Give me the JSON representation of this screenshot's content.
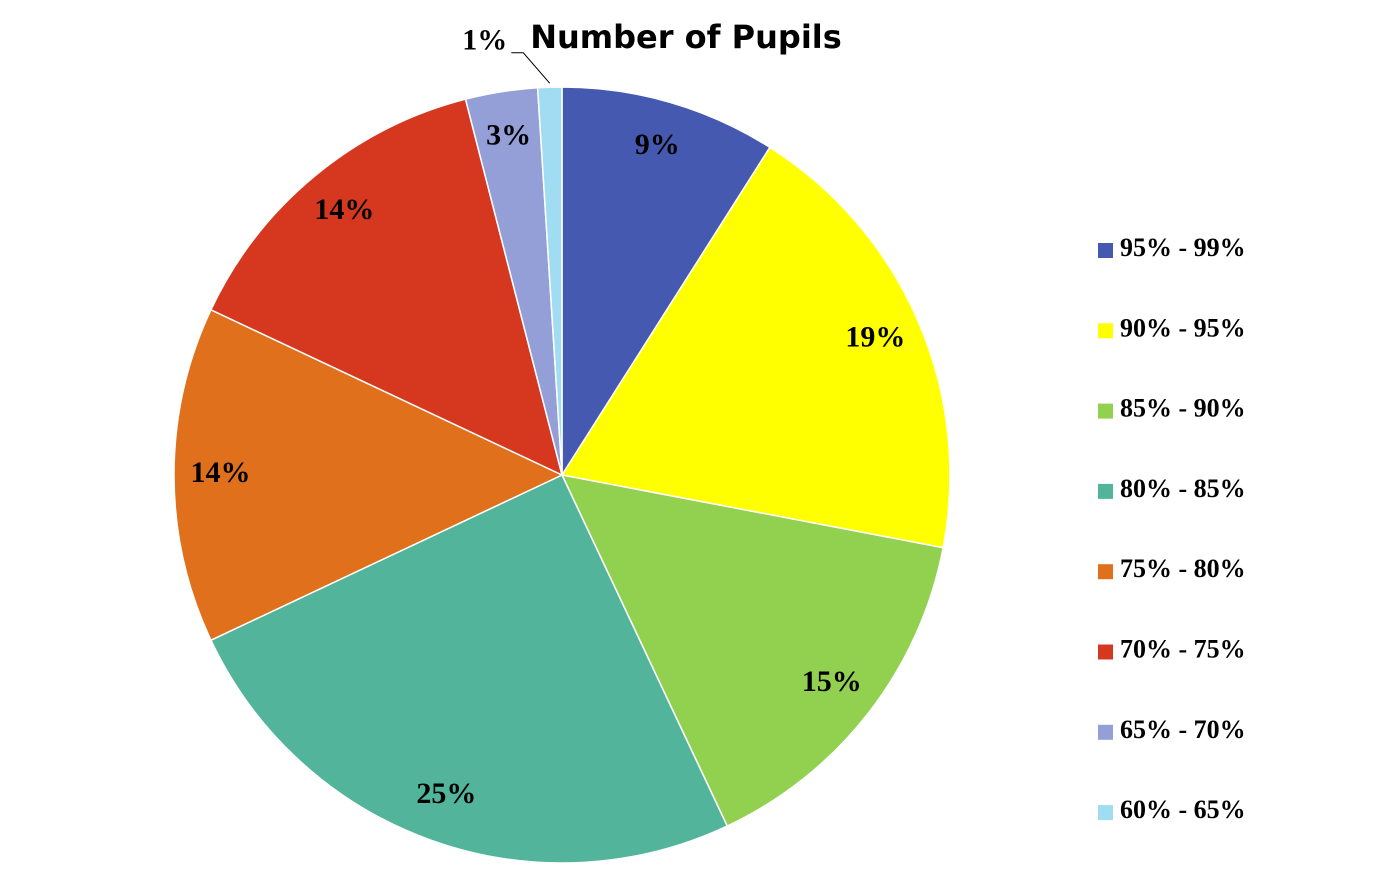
{
  "chart_data": {
    "type": "pie",
    "title": "Number of Pupils",
    "categories": [
      "95% - 99%",
      "90% - 95%",
      "85% - 90%",
      "80% - 85%",
      "75% - 80%",
      "70% - 75%",
      "65% - 70%",
      "60% - 65%"
    ],
    "values": [
      9,
      19,
      15,
      25,
      14,
      14,
      3,
      1
    ],
    "value_labels": [
      "9%",
      "19%",
      "15%",
      "25%",
      "14%",
      "14%",
      "3%",
      "1%"
    ],
    "colors": [
      "#4559b0",
      "#ffff00",
      "#92d050",
      "#52b59b",
      "#e0701c",
      "#d6381f",
      "#949fd8",
      "#a0dcf2"
    ],
    "legend": "right"
  }
}
